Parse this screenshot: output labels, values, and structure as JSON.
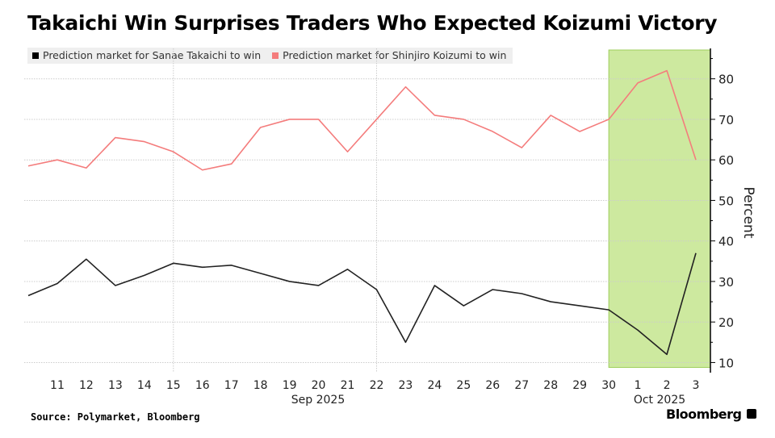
{
  "chart_data": {
    "type": "line",
    "title": "Takaichi Win Surprises Traders Who Expected Koizumi Victory",
    "x": [
      "Sep 10",
      "Sep 11",
      "Sep 12",
      "Sep 13",
      "Sep 14",
      "Sep 15",
      "Sep 16",
      "Sep 17",
      "Sep 18",
      "Sep 19",
      "Sep 20",
      "Sep 21",
      "Sep 22",
      "Sep 23",
      "Sep 24",
      "Sep 25",
      "Sep 26",
      "Sep 27",
      "Sep 28",
      "Sep 29",
      "Sep 30",
      "Oct 1",
      "Oct 2",
      "Oct 3"
    ],
    "x_tick_labels": [
      "11",
      "12",
      "13",
      "14",
      "15",
      "16",
      "17",
      "18",
      "19",
      "20",
      "21",
      "22",
      "23",
      "24",
      "25",
      "26",
      "27",
      "28",
      "29",
      "30",
      "1",
      "2",
      "3"
    ],
    "x_group_labels": [
      "Sep 2025",
      "Oct 2025"
    ],
    "series": [
      {
        "name": "Prediction market for Sanae Takaichi to win",
        "color": "#000000",
        "values": [
          26.5,
          29.5,
          35.5,
          29,
          31.5,
          34.5,
          33.5,
          34,
          32,
          30,
          29,
          33,
          28,
          15,
          29,
          24,
          28,
          27,
          25,
          24,
          23,
          18,
          12,
          37
        ]
      },
      {
        "name": "Prediction market for Shinjiro Koizumi to win",
        "color": "#f47c7c",
        "values": [
          58.5,
          60,
          58,
          65.5,
          64.5,
          62,
          57.5,
          59,
          68,
          70,
          70,
          62,
          70,
          78,
          71,
          70,
          67,
          63,
          71,
          67,
          70,
          79,
          82,
          60
        ]
      }
    ],
    "ylabel": "Percent",
    "y_ticks": [
      10,
      20,
      30,
      40,
      50,
      60,
      70,
      80
    ],
    "ylim": [
      7.5,
      87.5
    ],
    "y_axis_side": "right",
    "grid": true,
    "legend_placement": "top-left",
    "highlight": {
      "from": "Sep 30",
      "to": "Oct 3",
      "color": "#c5e68f"
    }
  },
  "source": "Source: Polymarket, Bloomberg",
  "brand": "Bloomberg"
}
